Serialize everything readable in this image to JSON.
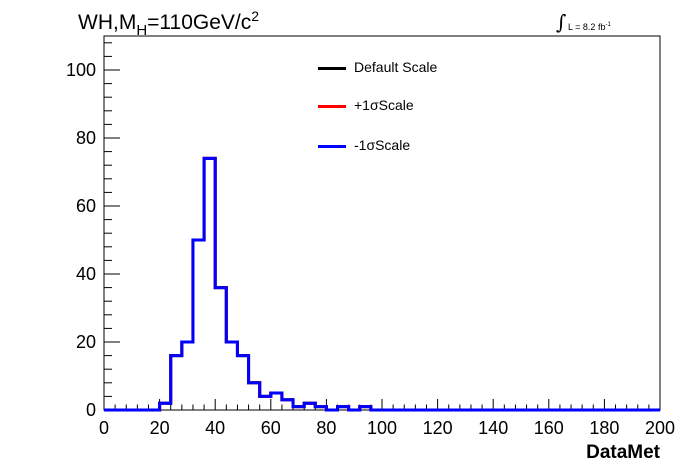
{
  "chart_data": {
    "type": "line",
    "title_parts": {
      "prefix": "WH,M",
      "sub": "H",
      "middle": "=110GeV/c",
      "sup": "2"
    },
    "lumi": {
      "int_sign": "∫",
      "text": "L = 8.2 fb",
      "sup": "-1"
    },
    "xlabel": "DataMet",
    "ylabel": "",
    "xlim": [
      0,
      200
    ],
    "ylim": [
      0,
      110
    ],
    "x_ticks": [
      0,
      20,
      40,
      60,
      80,
      100,
      120,
      140,
      160,
      180,
      200
    ],
    "y_ticks": [
      0,
      20,
      40,
      60,
      80,
      100
    ],
    "x_tick_labels": [
      "0",
      "20",
      "40",
      "60",
      "80",
      "100",
      "120",
      "140",
      "160",
      "180",
      "200"
    ],
    "y_tick_labels": [
      "0",
      "20",
      "40",
      "60",
      "80",
      "100"
    ],
    "bin_width": 4,
    "bin_edges_start": 0,
    "series": [
      {
        "name": "Default Scale",
        "color": "#000000",
        "values": [
          0,
          0,
          0,
          0,
          0,
          2,
          16,
          20,
          50,
          74,
          36,
          20,
          16,
          8,
          4,
          5,
          3,
          1,
          2,
          1,
          0,
          1,
          0,
          1,
          0,
          0,
          0,
          0,
          0,
          0,
          0,
          0,
          0,
          0,
          0,
          0,
          0,
          0,
          0,
          0,
          0,
          0,
          0,
          0,
          0,
          0,
          0,
          0,
          0,
          0
        ]
      },
      {
        "name": "+1σScale",
        "color": "#ff0000",
        "values": [
          0,
          0,
          0,
          0,
          0,
          2,
          16,
          20,
          50,
          74,
          36,
          20,
          16,
          8,
          4,
          5,
          3,
          1,
          2,
          1,
          0,
          1,
          0,
          1,
          0,
          0,
          0,
          0,
          0,
          0,
          0,
          0,
          0,
          0,
          0,
          0,
          0,
          0,
          0,
          0,
          0,
          0,
          0,
          0,
          0,
          0,
          0,
          0,
          0,
          0
        ]
      },
      {
        "name": "-1σScale",
        "color": "#0000ff",
        "values": [
          0,
          0,
          0,
          0,
          0,
          2,
          16,
          20,
          50,
          74,
          36,
          20,
          16,
          8,
          4,
          5,
          3,
          1,
          2,
          1,
          0,
          1,
          0,
          1,
          0,
          0,
          0,
          0,
          0,
          0,
          0,
          0,
          0,
          0,
          0,
          0,
          0,
          0,
          0,
          0,
          0,
          0,
          0,
          0,
          0,
          0,
          0,
          0,
          0,
          0
        ]
      }
    ],
    "legend": [
      "Default Scale",
      "+1σScale",
      "-1σScale"
    ],
    "grid": false,
    "legend_placement": "top-center"
  }
}
